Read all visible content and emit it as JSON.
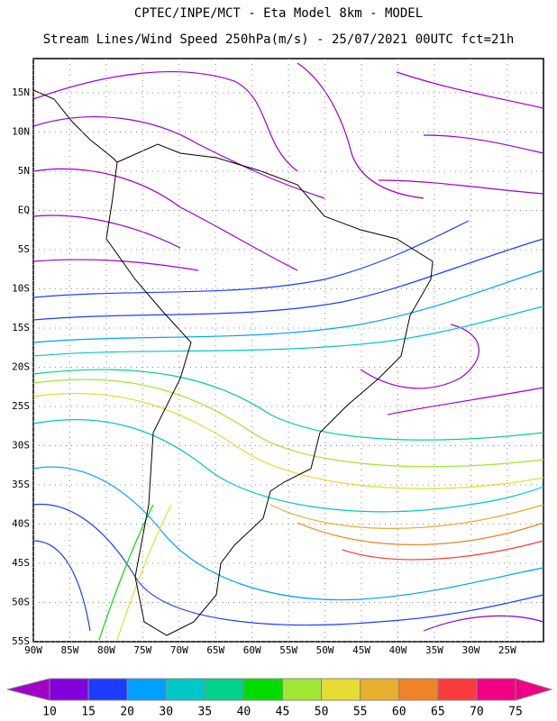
{
  "header": {
    "title": "CPTEC/INPE/MCT -  Eta Model 8km - MODEL",
    "subtitle": "Stream Lines/Wind Speed 250hPa(m/s) - 25/07/2021 00UTC fct=21h"
  },
  "map": {
    "lat_labels": [
      "15N",
      "10N",
      "5N",
      "EQ",
      "5S",
      "10S",
      "15S",
      "20S",
      "25S",
      "30S",
      "35S",
      "40S",
      "45S",
      "50S",
      "55S"
    ],
    "lon_labels": [
      "90W",
      "85W",
      "80W",
      "75W",
      "70W",
      "65W",
      "60W",
      "55W",
      "50W",
      "45W",
      "40W",
      "35W",
      "30W",
      "25W"
    ]
  },
  "colorbar": {
    "labels": [
      10,
      15,
      20,
      30,
      35,
      40,
      45,
      50,
      55,
      60,
      65,
      70,
      75
    ],
    "colors": [
      "#a000c8",
      "#8200dc",
      "#1e3cff",
      "#00a0ff",
      "#00c8c8",
      "#00d28c",
      "#00dc00",
      "#a0e632",
      "#e6dc32",
      "#e6af2d",
      "#f08228",
      "#fa3c3c",
      "#f00082"
    ]
  }
}
